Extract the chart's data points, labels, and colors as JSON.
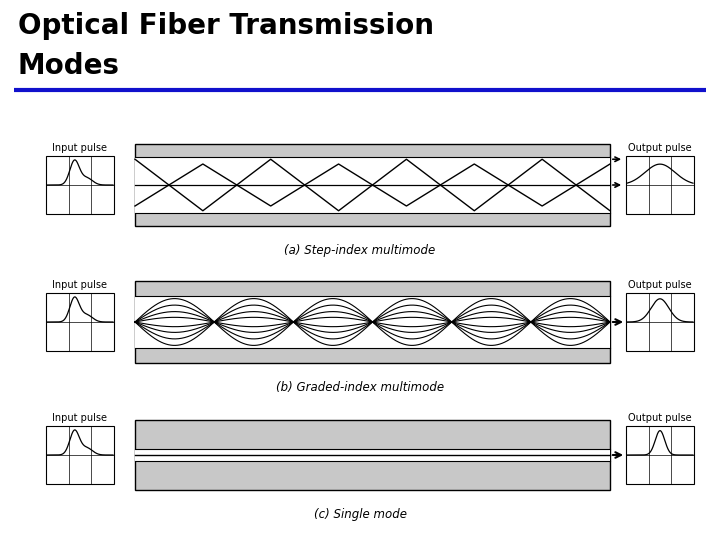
{
  "title_line1": "Optical Fiber Transmission",
  "title_line2": "Modes",
  "title_fontsize": 20,
  "title_fontweight": "bold",
  "title_color": "#000000",
  "blue_line_color": "#1111CC",
  "bg_color": "#ffffff",
  "cladding_color": "#c8c8c8",
  "core_color": "#ffffff",
  "captions": [
    "(a) Step-index multimode",
    "(b) Graded-index multimode",
    "(c) Single mode"
  ]
}
